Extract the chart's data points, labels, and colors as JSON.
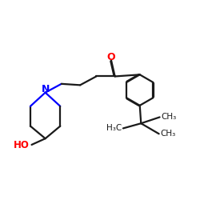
{
  "bg_color": "#ffffff",
  "bond_color": "#1a1a1a",
  "N_color": "#0000ff",
  "O_color": "#ff0000",
  "line_width": 1.6,
  "fig_size": [
    2.5,
    2.5
  ],
  "dpi": 100,
  "xlim": [
    0.5,
    8.5
  ],
  "ylim": [
    1.2,
    7.2
  ]
}
